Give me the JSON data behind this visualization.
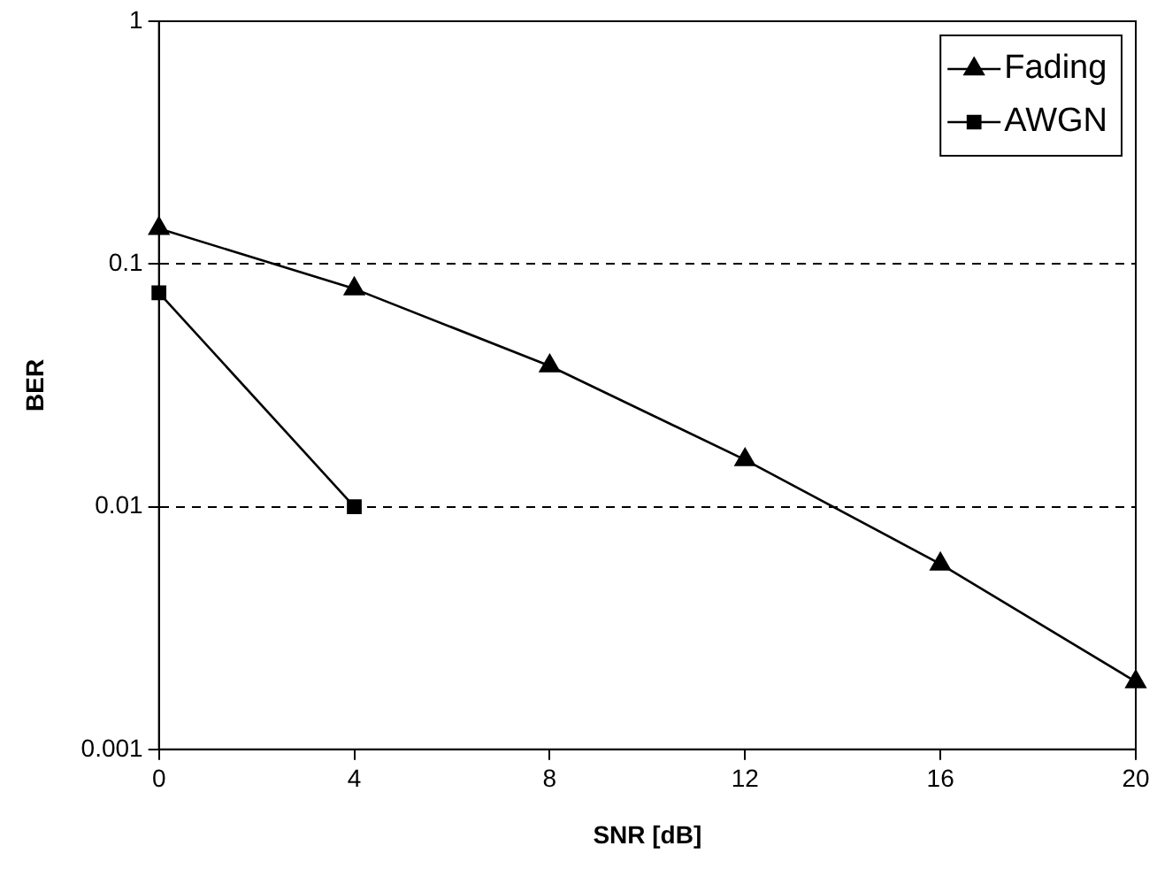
{
  "chart_data": {
    "type": "line",
    "xlabel": "SNR [dB]",
    "ylabel": "BER",
    "x": [
      0,
      4,
      8,
      12,
      16,
      20
    ],
    "series": [
      {
        "name": "Fading",
        "color": "#000000",
        "marker": "triangle",
        "values": [
          0.14,
          0.079,
          0.038,
          0.0156,
          0.0058,
          0.0019
        ]
      },
      {
        "name": "AWGN",
        "color": "#000000",
        "marker": "square",
        "values": [
          0.076,
          0.01,
          null,
          null,
          null,
          null
        ]
      }
    ],
    "log": "y",
    "xlim": [
      0,
      20
    ],
    "xticks": [
      0,
      4,
      8,
      12,
      16,
      20
    ],
    "ylim": [
      0.001,
      1
    ],
    "yticks": [
      0.001,
      0.01,
      0.1,
      1
    ],
    "grid": "y",
    "legend": "top right",
    "line_style": "solid"
  }
}
